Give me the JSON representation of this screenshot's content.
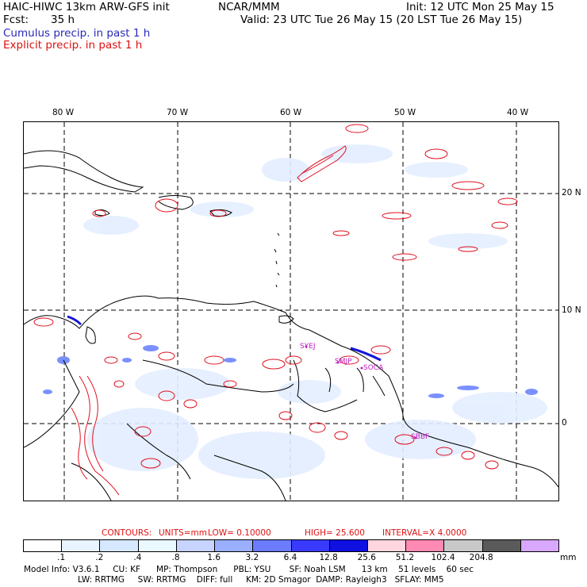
{
  "header": {
    "model": "HAIC-HIWC 13km ARW-GFS init",
    "org": "NCAR/MMM",
    "init": "Init: 12 UTC Mon 25 May 15",
    "fcst_label": "Fcst:",
    "fcst_value": "35 h",
    "valid": "Valid: 23 UTC Tue 26 May 15 (20 LST Tue 26 May 15)",
    "cumulus": "Cumulus precip. in past 1 h",
    "explicit": "Explicit precip. in past 1 h"
  },
  "map": {
    "lon_labels": [
      "80 W",
      "70 W",
      "60 W",
      "50 W",
      "40 W"
    ],
    "lat_labels": [
      "20 N",
      "10 N",
      "0"
    ],
    "stations": [
      "SYEJ",
      "SMJP",
      "SOCA",
      "SBBF"
    ]
  },
  "contours": {
    "label": "CONTOURS:",
    "units": "UNITS=mm",
    "low": "LOW= 0.10000",
    "high": "HIGH= 25.600",
    "interval": "INTERVAL=X 4.0000"
  },
  "colorbar": {
    "labels": [
      ".1",
      ".2",
      ".4",
      ".8",
      "1.6",
      "3.2",
      "6.4",
      "12.8",
      "25.6",
      "51.2",
      "102.4",
      "204.8"
    ],
    "unit": "mm",
    "colors": [
      "#ffffff",
      "#e8f4ff",
      "#d6e8ff",
      "#eaf8ff",
      "#c6d4ff",
      "#9ab0ff",
      "#6b7cff",
      "#3a3aff",
      "#1010e0",
      "#ffd6e0",
      "#ff8ab4",
      "#c8c8c8",
      "#5a5a5a",
      "#d8a8ff"
    ]
  },
  "model_info": {
    "line1": "Model Info: V3.6.1     CU: KF      MP: Thompson      PBL: YSU       SF: Noah LSM      13 km    51 levels    60 sec",
    "line2": "LW: RRTMG     SW: RRTMG    DIFF: full     KM: 2D Smagor  DAMP: Rayleigh3   SFLAY: MM5"
  }
}
